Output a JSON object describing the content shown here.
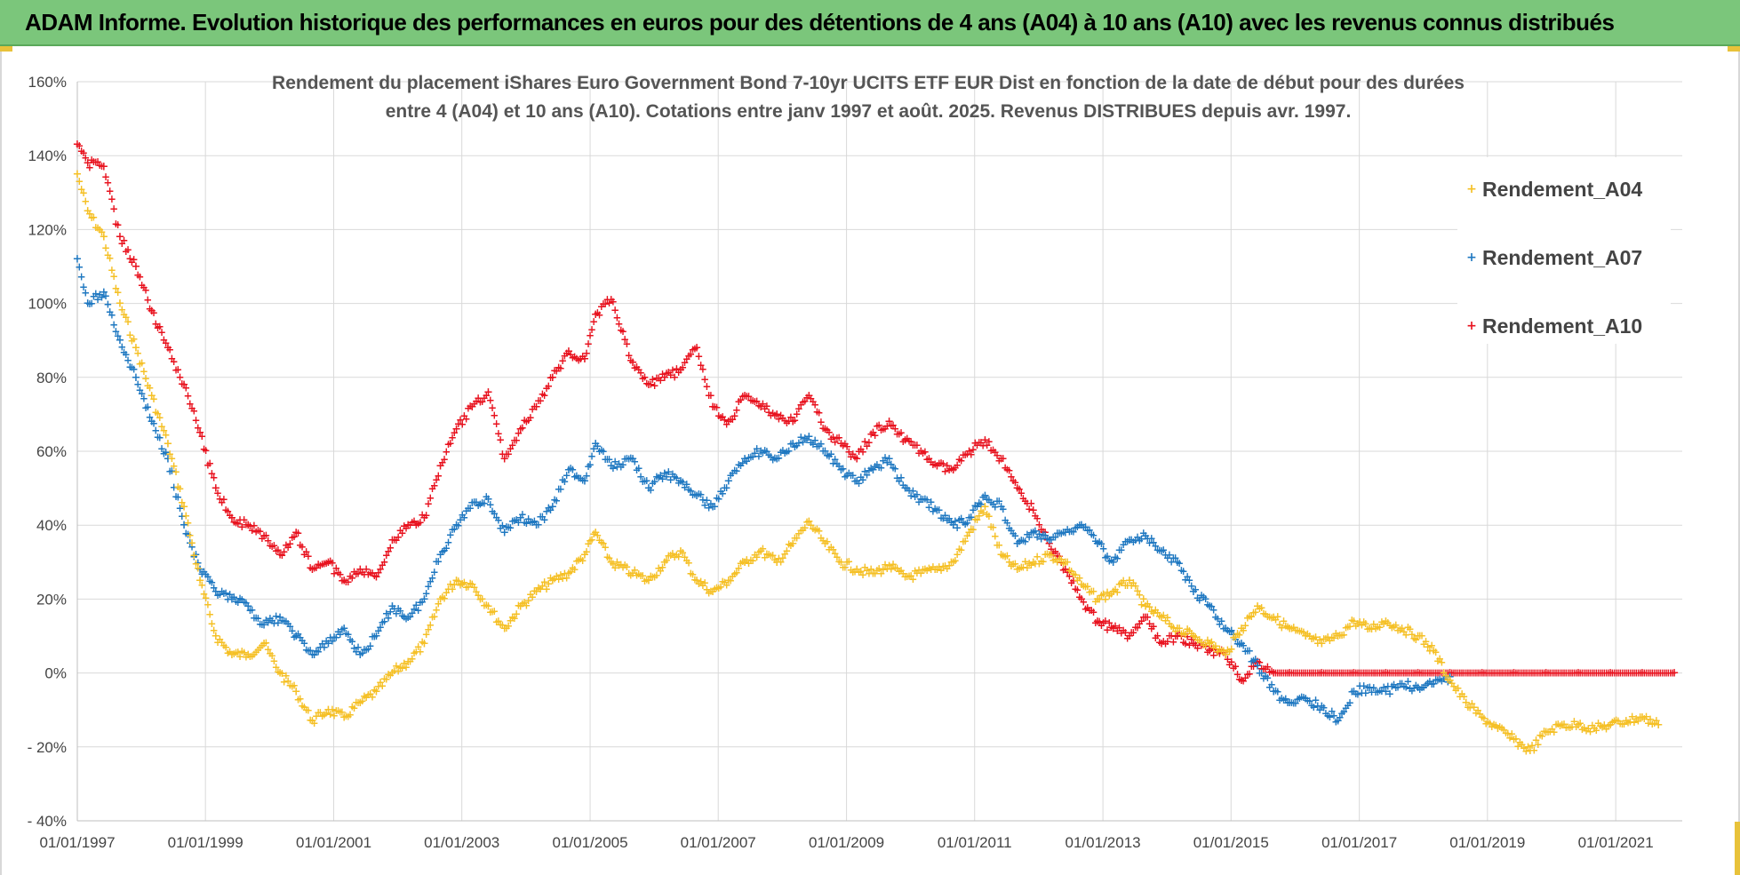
{
  "banner": {
    "title": "ADAM Informe. Evolution historique des performances en euros pour des détentions de 4 ans (A04) à 10 ans (A10) avec les revenus connus distribués"
  },
  "colors": {
    "banner_bg": "#7bc67b",
    "A04": "#f5c026",
    "A07": "#1f78c1",
    "A10": "#e8131f",
    "grid": "#d9d9d9"
  },
  "chart_data": {
    "type": "scatter",
    "title": [
      "Rendement du placement iShares Euro Government Bond 7-10yr UCITS ETF EUR Dist en fonction de la date de début pour des durées",
      "entre 4 (A04) et 10 ans (A10).  Cotations entre janv 1997 et août. 2025. Revenus DISTRIBUES depuis avr. 1997."
    ],
    "xlabel": "",
    "ylabel": "",
    "x_ticks": [
      "01/01/1997",
      "01/01/1999",
      "01/01/2001",
      "01/01/2003",
      "01/01/2005",
      "01/01/2007",
      "01/01/2009",
      "01/01/2011",
      "01/01/2013",
      "01/01/2015",
      "01/01/2017",
      "01/01/2019",
      "01/01/2021"
    ],
    "y_ticks": [
      "160%",
      "140%",
      "120%",
      "100%",
      "80%",
      "60%",
      "40%",
      "20%",
      "0%",
      "- 20%",
      "- 40%"
    ],
    "xlim": [
      "1997-01-01",
      "2022-01-15"
    ],
    "ylim": [
      -40,
      160
    ],
    "grid": true,
    "legend_position": "top-right",
    "series": [
      {
        "name": "Rendement_A04",
        "color": "#f5c026",
        "points": [
          [
            "1997-01-01",
            135
          ],
          [
            "1997-03-01",
            125
          ],
          [
            "1997-06-01",
            118
          ],
          [
            "1997-09-01",
            100
          ],
          [
            "1997-12-01",
            88
          ],
          [
            "1998-03-01",
            75
          ],
          [
            "1998-06-01",
            62
          ],
          [
            "1998-09-01",
            45
          ],
          [
            "1998-12-01",
            25
          ],
          [
            "1999-03-01",
            10
          ],
          [
            "1999-06-01",
            5
          ],
          [
            "1999-09-01",
            5
          ],
          [
            "1999-12-01",
            8
          ],
          [
            "2000-03-01",
            0
          ],
          [
            "2000-06-01",
            -5
          ],
          [
            "2000-09-01",
            -13
          ],
          [
            "2000-12-01",
            -10
          ],
          [
            "2001-03-01",
            -12
          ],
          [
            "2001-06-01",
            -8
          ],
          [
            "2001-09-01",
            -5
          ],
          [
            "2001-12-01",
            0
          ],
          [
            "2002-03-01",
            3
          ],
          [
            "2002-06-01",
            8
          ],
          [
            "2002-09-01",
            20
          ],
          [
            "2002-12-01",
            25
          ],
          [
            "2003-03-01",
            24
          ],
          [
            "2003-06-01",
            18
          ],
          [
            "2003-09-01",
            12
          ],
          [
            "2003-12-01",
            18
          ],
          [
            "2004-03-01",
            22
          ],
          [
            "2004-06-01",
            25
          ],
          [
            "2004-09-01",
            27
          ],
          [
            "2004-12-01",
            32
          ],
          [
            "2005-02-01",
            38
          ],
          [
            "2005-05-01",
            30
          ],
          [
            "2005-09-01",
            27
          ],
          [
            "2005-12-01",
            25
          ],
          [
            "2006-03-01",
            30
          ],
          [
            "2006-06-01",
            33
          ],
          [
            "2006-09-01",
            25
          ],
          [
            "2006-12-01",
            22
          ],
          [
            "2007-03-01",
            25
          ],
          [
            "2007-06-01",
            30
          ],
          [
            "2007-09-01",
            33
          ],
          [
            "2007-12-01",
            30
          ],
          [
            "2008-03-01",
            35
          ],
          [
            "2008-06-01",
            41
          ],
          [
            "2008-09-01",
            35
          ],
          [
            "2008-12-01",
            30
          ],
          [
            "2009-03-01",
            28
          ],
          [
            "2009-06-01",
            27
          ],
          [
            "2009-09-01",
            29
          ],
          [
            "2009-12-01",
            26
          ],
          [
            "2010-03-01",
            27
          ],
          [
            "2010-06-01",
            28
          ],
          [
            "2010-09-01",
            30
          ],
          [
            "2010-12-01",
            38
          ],
          [
            "2011-03-01",
            45
          ],
          [
            "2011-06-01",
            32
          ],
          [
            "2011-09-01",
            28
          ],
          [
            "2011-12-01",
            30
          ],
          [
            "2012-03-01",
            32
          ],
          [
            "2012-06-01",
            30
          ],
          [
            "2012-09-01",
            24
          ],
          [
            "2012-12-01",
            20
          ],
          [
            "2013-03-01",
            22
          ],
          [
            "2013-06-01",
            25
          ],
          [
            "2013-09-01",
            18
          ],
          [
            "2013-12-01",
            15
          ],
          [
            "2014-03-01",
            12
          ],
          [
            "2014-06-01",
            10
          ],
          [
            "2014-09-01",
            8
          ],
          [
            "2014-12-01",
            5
          ],
          [
            "2015-03-01",
            12
          ],
          [
            "2015-06-01",
            18
          ],
          [
            "2015-09-01",
            15
          ],
          [
            "2015-12-01",
            12
          ],
          [
            "2016-03-01",
            10
          ],
          [
            "2016-06-01",
            8
          ],
          [
            "2016-09-01",
            10
          ],
          [
            "2016-12-01",
            14
          ],
          [
            "2017-03-01",
            12
          ],
          [
            "2017-06-01",
            14
          ],
          [
            "2017-09-01",
            12
          ],
          [
            "2017-12-01",
            10
          ],
          [
            "2018-03-01",
            6
          ],
          [
            "2018-06-01",
            -2
          ],
          [
            "2018-09-01",
            -8
          ],
          [
            "2018-12-01",
            -12
          ],
          [
            "2019-03-01",
            -15
          ],
          [
            "2019-06-01",
            -18
          ],
          [
            "2019-09-01",
            -21
          ],
          [
            "2019-12-01",
            -16
          ],
          [
            "2020-03-01",
            -14
          ],
          [
            "2020-06-01",
            -14
          ],
          [
            "2020-09-01",
            -15
          ],
          [
            "2020-12-01",
            -14
          ],
          [
            "2021-03-01",
            -13
          ],
          [
            "2021-06-01",
            -12
          ],
          [
            "2021-09-01",
            -14
          ]
        ]
      },
      {
        "name": "Rendement_A07",
        "color": "#1f78c1",
        "points": [
          [
            "1997-01-01",
            112
          ],
          [
            "1997-03-01",
            100
          ],
          [
            "1997-06-01",
            103
          ],
          [
            "1997-09-01",
            90
          ],
          [
            "1997-12-01",
            80
          ],
          [
            "1998-03-01",
            68
          ],
          [
            "1998-06-01",
            58
          ],
          [
            "1998-09-01",
            40
          ],
          [
            "1998-12-01",
            28
          ],
          [
            "1999-03-01",
            22
          ],
          [
            "1999-06-01",
            20
          ],
          [
            "1999-09-01",
            18
          ],
          [
            "1999-12-01",
            13
          ],
          [
            "2000-03-01",
            15
          ],
          [
            "2000-06-01",
            10
          ],
          [
            "2000-09-01",
            5
          ],
          [
            "2000-12-01",
            8
          ],
          [
            "2001-03-01",
            12
          ],
          [
            "2001-06-01",
            5
          ],
          [
            "2001-09-01",
            10
          ],
          [
            "2001-12-01",
            18
          ],
          [
            "2002-03-01",
            15
          ],
          [
            "2002-06-01",
            20
          ],
          [
            "2002-09-01",
            32
          ],
          [
            "2002-12-01",
            40
          ],
          [
            "2003-03-01",
            46
          ],
          [
            "2003-06-01",
            47
          ],
          [
            "2003-09-01",
            38
          ],
          [
            "2003-12-01",
            42
          ],
          [
            "2004-03-01",
            40
          ],
          [
            "2004-06-01",
            45
          ],
          [
            "2004-09-01",
            55
          ],
          [
            "2004-12-01",
            52
          ],
          [
            "2005-02-01",
            62
          ],
          [
            "2005-05-01",
            56
          ],
          [
            "2005-09-01",
            58
          ],
          [
            "2005-12-01",
            50
          ],
          [
            "2006-03-01",
            54
          ],
          [
            "2006-06-01",
            52
          ],
          [
            "2006-09-01",
            48
          ],
          [
            "2006-12-01",
            45
          ],
          [
            "2007-03-01",
            52
          ],
          [
            "2007-06-01",
            58
          ],
          [
            "2007-09-01",
            60
          ],
          [
            "2007-12-01",
            58
          ],
          [
            "2008-03-01",
            62
          ],
          [
            "2008-06-01",
            64
          ],
          [
            "2008-09-01",
            60
          ],
          [
            "2008-12-01",
            55
          ],
          [
            "2009-03-01",
            52
          ],
          [
            "2009-06-01",
            55
          ],
          [
            "2009-09-01",
            58
          ],
          [
            "2009-12-01",
            50
          ],
          [
            "2010-03-01",
            47
          ],
          [
            "2010-06-01",
            44
          ],
          [
            "2010-09-01",
            40
          ],
          [
            "2010-12-01",
            42
          ],
          [
            "2011-03-01",
            48
          ],
          [
            "2011-06-01",
            45
          ],
          [
            "2011-09-01",
            35
          ],
          [
            "2011-12-01",
            38
          ],
          [
            "2012-03-01",
            36
          ],
          [
            "2012-06-01",
            38
          ],
          [
            "2012-09-01",
            40
          ],
          [
            "2012-12-01",
            35
          ],
          [
            "2013-03-01",
            30
          ],
          [
            "2013-06-01",
            36
          ],
          [
            "2013-09-01",
            37
          ],
          [
            "2013-12-01",
            33
          ],
          [
            "2014-03-01",
            30
          ],
          [
            "2014-06-01",
            22
          ],
          [
            "2014-09-01",
            18
          ],
          [
            "2014-12-01",
            12
          ],
          [
            "2015-03-01",
            8
          ],
          [
            "2015-06-01",
            2
          ],
          [
            "2015-09-01",
            -5
          ],
          [
            "2015-12-01",
            -8
          ],
          [
            "2016-03-01",
            -7
          ],
          [
            "2016-06-01",
            -9
          ],
          [
            "2016-09-01",
            -13
          ],
          [
            "2016-12-01",
            -5
          ],
          [
            "2017-03-01",
            -4
          ],
          [
            "2017-06-01",
            -5
          ],
          [
            "2017-09-01",
            -3
          ],
          [
            "2017-12-01",
            -4
          ],
          [
            "2018-03-01",
            -3
          ],
          [
            "2018-06-01",
            -1
          ]
        ]
      },
      {
        "name": "Rendement_A10",
        "color": "#e8131f",
        "points": [
          [
            "1997-01-01",
            143
          ],
          [
            "1997-03-01",
            138
          ],
          [
            "1997-06-01",
            137
          ],
          [
            "1997-09-01",
            118
          ],
          [
            "1997-12-01",
            110
          ],
          [
            "1998-03-01",
            98
          ],
          [
            "1998-06-01",
            88
          ],
          [
            "1998-09-01",
            78
          ],
          [
            "1998-12-01",
            65
          ],
          [
            "1999-03-01",
            50
          ],
          [
            "1999-06-01",
            42
          ],
          [
            "1999-09-01",
            40
          ],
          [
            "1999-12-01",
            37
          ],
          [
            "2000-03-01",
            32
          ],
          [
            "2000-06-01",
            38
          ],
          [
            "2000-09-01",
            28
          ],
          [
            "2000-12-01",
            30
          ],
          [
            "2001-03-01",
            25
          ],
          [
            "2001-06-01",
            28
          ],
          [
            "2001-09-01",
            26
          ],
          [
            "2001-12-01",
            36
          ],
          [
            "2002-03-01",
            40
          ],
          [
            "2002-06-01",
            42
          ],
          [
            "2002-09-01",
            56
          ],
          [
            "2002-12-01",
            66
          ],
          [
            "2003-03-01",
            72
          ],
          [
            "2003-06-01",
            76
          ],
          [
            "2003-09-01",
            58
          ],
          [
            "2003-12-01",
            66
          ],
          [
            "2004-03-01",
            72
          ],
          [
            "2004-06-01",
            80
          ],
          [
            "2004-09-01",
            87
          ],
          [
            "2004-12-01",
            85
          ],
          [
            "2005-02-01",
            97
          ],
          [
            "2005-05-01",
            101
          ],
          [
            "2005-09-01",
            84
          ],
          [
            "2005-12-01",
            78
          ],
          [
            "2006-03-01",
            80
          ],
          [
            "2006-06-01",
            82
          ],
          [
            "2006-09-01",
            88
          ],
          [
            "2006-12-01",
            72
          ],
          [
            "2007-03-01",
            68
          ],
          [
            "2007-06-01",
            75
          ],
          [
            "2007-09-01",
            72
          ],
          [
            "2007-12-01",
            70
          ],
          [
            "2008-03-01",
            68
          ],
          [
            "2008-06-01",
            75
          ],
          [
            "2008-09-01",
            66
          ],
          [
            "2008-12-01",
            62
          ],
          [
            "2009-03-01",
            58
          ],
          [
            "2009-06-01",
            65
          ],
          [
            "2009-09-01",
            68
          ],
          [
            "2009-12-01",
            63
          ],
          [
            "2010-03-01",
            60
          ],
          [
            "2010-06-01",
            56
          ],
          [
            "2010-09-01",
            55
          ],
          [
            "2010-12-01",
            60
          ],
          [
            "2011-03-01",
            63
          ],
          [
            "2011-06-01",
            58
          ],
          [
            "2011-09-01",
            50
          ],
          [
            "2011-12-01",
            44
          ],
          [
            "2012-03-01",
            35
          ],
          [
            "2012-06-01",
            28
          ],
          [
            "2012-09-01",
            20
          ],
          [
            "2012-12-01",
            14
          ],
          [
            "2013-03-01",
            12
          ],
          [
            "2013-06-01",
            10
          ],
          [
            "2013-09-01",
            15
          ],
          [
            "2013-12-01",
            8
          ],
          [
            "2014-03-01",
            10
          ],
          [
            "2014-06-01",
            8
          ],
          [
            "2014-09-01",
            6
          ],
          [
            "2014-12-01",
            5
          ],
          [
            "2015-03-01",
            -2
          ],
          [
            "2015-06-01",
            3
          ],
          [
            "2015-09-01",
            0
          ],
          [
            "2015-12-01",
            0
          ],
          [
            "2016-06-01",
            0
          ],
          [
            "2016-12-01",
            0
          ],
          [
            "2017-06-01",
            0
          ],
          [
            "2017-12-01",
            0
          ],
          [
            "2018-06-01",
            0
          ],
          [
            "2018-12-01",
            0
          ],
          [
            "2019-06-01",
            0
          ],
          [
            "2019-12-01",
            0
          ],
          [
            "2020-06-01",
            0
          ],
          [
            "2020-12-01",
            0
          ],
          [
            "2021-06-01",
            0
          ],
          [
            "2021-12-01",
            0
          ]
        ]
      }
    ]
  }
}
